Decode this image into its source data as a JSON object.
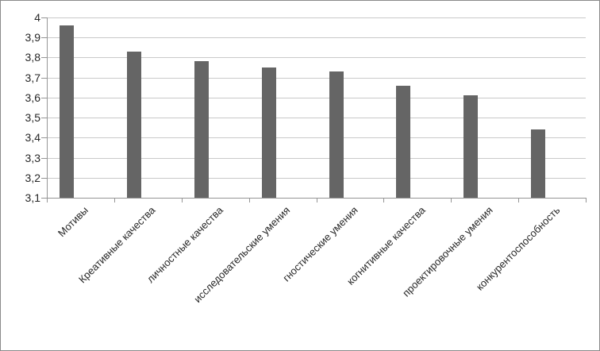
{
  "chart_data": {
    "type": "bar",
    "title": "",
    "xlabel": "",
    "ylabel": "",
    "categories": [
      "Мотивы",
      "Креативные качества",
      "личностные качества",
      "исследовательские умения",
      "гностические умения",
      "когнитивные качества",
      "проектировочные умения",
      "конкурентоспособность"
    ],
    "values": [
      3.96,
      3.83,
      3.78,
      3.75,
      3.73,
      3.66,
      3.61,
      3.44
    ],
    "y_ticks": [
      {
        "label": "4",
        "value": 4.0
      },
      {
        "label": "3,9",
        "value": 3.9
      },
      {
        "label": "3,8",
        "value": 3.8
      },
      {
        "label": "3,7",
        "value": 3.7
      },
      {
        "label": "3,6",
        "value": 3.6
      },
      {
        "label": "3,5",
        "value": 3.5
      },
      {
        "label": "3,4",
        "value": 3.4
      },
      {
        "label": "3,3",
        "value": 3.3
      },
      {
        "label": "3,2",
        "value": 3.2
      },
      {
        "label": "3,1",
        "value": 3.1
      }
    ],
    "ylim": [
      3.1,
      4.0
    ],
    "grid": true,
    "legend": "none",
    "decimal_separator": ",",
    "x_label_rotation_deg": -45,
    "colors": {
      "bar": "#656565",
      "gridline": "#c9c9c9",
      "axis": "#959595",
      "text": "#262626",
      "frame_border": "#8a8a8a",
      "background": "#ffffff"
    }
  }
}
